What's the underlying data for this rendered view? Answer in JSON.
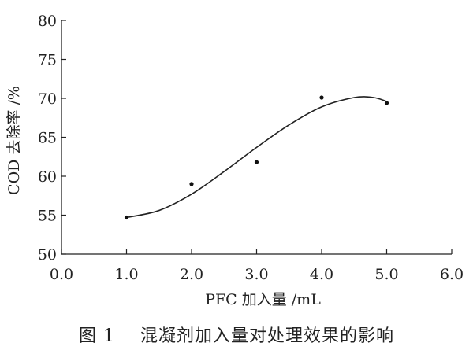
{
  "chart_data": {
    "type": "scatter",
    "title": "",
    "xlabel": "PFC 加入量 /mL",
    "ylabel": "COD 去除率 /%",
    "xlim": [
      0.0,
      6.0
    ],
    "ylim": [
      50,
      80
    ],
    "xticks": [
      "0.0",
      "1.0",
      "2.0",
      "3.0",
      "4.0",
      "5.0",
      "6.0"
    ],
    "yticks": [
      "50",
      "55",
      "60",
      "65",
      "70",
      "75",
      "80"
    ],
    "points": [
      {
        "x": 1.0,
        "y": 54.7
      },
      {
        "x": 2.0,
        "y": 59.0
      },
      {
        "x": 3.0,
        "y": 61.8
      },
      {
        "x": 4.0,
        "y": 70.1
      },
      {
        "x": 5.0,
        "y": 69.4
      }
    ],
    "fit_curve": {
      "x": [
        1.0,
        1.5,
        2.0,
        2.5,
        3.0,
        3.5,
        4.0,
        4.5,
        4.8,
        5.0
      ],
      "y": [
        54.7,
        55.6,
        57.7,
        60.6,
        63.7,
        66.6,
        68.9,
        70.1,
        70.1,
        69.6
      ]
    },
    "grid": false,
    "legend": "none"
  },
  "figure": {
    "caption_number": "图 1",
    "caption_text": "混凝剂加入量对处理效果的影响"
  }
}
